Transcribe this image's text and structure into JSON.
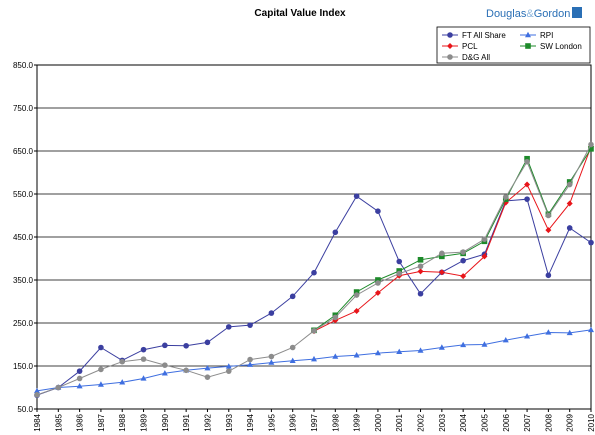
{
  "brand": {
    "name_left": "Douglas",
    "amp": "&",
    "name_right": "Gordon"
  },
  "chart_data": {
    "type": "line",
    "title": "Capital Value Index",
    "xlabel": "",
    "ylabel": "",
    "ylim": [
      50,
      850
    ],
    "yticks": [
      50.0,
      150.0,
      250.0,
      350.0,
      450.0,
      550.0,
      650.0,
      750.0,
      850.0
    ],
    "ytick_labels": [
      "50.0",
      "150.0",
      "250.0",
      "350.0",
      "450.0",
      "550.0",
      "650.0",
      "750.0",
      "850.0"
    ],
    "grid": "horizontal",
    "legend_position": "top-right",
    "x": [
      "1984",
      "1985",
      "1986",
      "1987",
      "1988",
      "1989",
      "1990",
      "1991",
      "1992",
      "1993",
      "1994",
      "1995",
      "1996",
      "1997",
      "1998",
      "1999",
      "2000",
      "2001",
      "2002",
      "2003",
      "2004",
      "2005",
      "2006",
      "2007",
      "2008",
      "2009",
      "2010"
    ],
    "series": [
      {
        "name": "FT All Share",
        "color": "#3b3fa0",
        "marker": "circle",
        "values": [
          82,
          100,
          138,
          193,
          163,
          188,
          198,
          197,
          205,
          241,
          245,
          273,
          312,
          367,
          461,
          545,
          510,
          393,
          318,
          368,
          395,
          410,
          534,
          538,
          361,
          471,
          437
        ]
      },
      {
        "name": "RPI",
        "color": "#3f6fe0",
        "marker": "triangle",
        "values": [
          92,
          100,
          103,
          107,
          112,
          121,
          133,
          140,
          145,
          149,
          153,
          158,
          162,
          166,
          172,
          175,
          180,
          183,
          186,
          193,
          199,
          200,
          210,
          219,
          228,
          227,
          234
        ]
      },
      {
        "name": "PCL",
        "color": "#e8151a",
        "marker": "diamond",
        "values": [
          null,
          null,
          null,
          null,
          null,
          null,
          null,
          null,
          null,
          null,
          null,
          null,
          null,
          231,
          256,
          278,
          320,
          360,
          370,
          368,
          359,
          405,
          530,
          572,
          466,
          528,
          660
        ]
      },
      {
        "name": "SW London",
        "color": "#1d8a2a",
        "marker": "square",
        "values": [
          null,
          null,
          null,
          null,
          null,
          null,
          null,
          null,
          null,
          null,
          null,
          null,
          null,
          233,
          268,
          322,
          350,
          371,
          397,
          405,
          412,
          440,
          538,
          632,
          503,
          578,
          655
        ]
      },
      {
        "name": "D&G All",
        "color": "#8c8c8c",
        "marker": "circle",
        "values": [
          83,
          100,
          121,
          142,
          160,
          166,
          152,
          140,
          124,
          138,
          165,
          172,
          193,
          232,
          263,
          315,
          343,
          365,
          382,
          412,
          415,
          445,
          543,
          625,
          500,
          572,
          665
        ]
      }
    ]
  }
}
